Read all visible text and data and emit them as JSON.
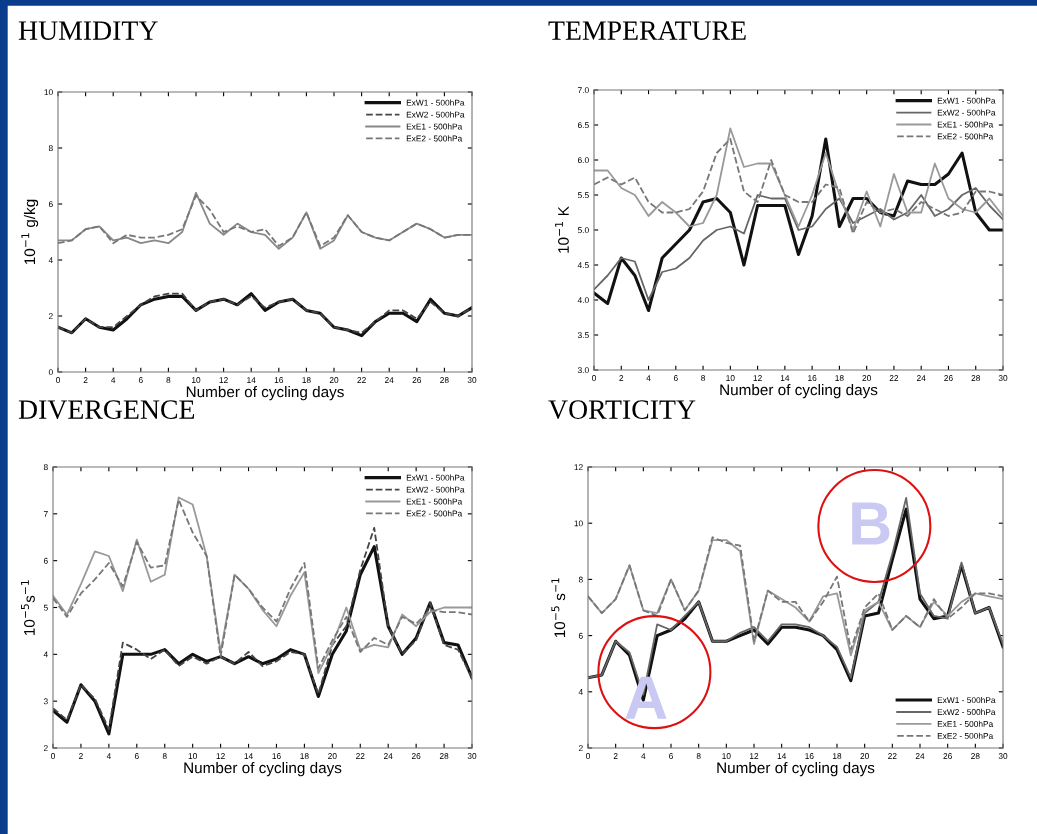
{
  "chart_data": [
    {
      "type": "line",
      "title": "HUMIDITY",
      "xlabel": "Number of cycling days",
      "ylabel": "10$^{−1}$ g/kg",
      "x": [
        0,
        1,
        2,
        3,
        4,
        5,
        6,
        7,
        8,
        9,
        10,
        11,
        12,
        13,
        14,
        15,
        16,
        17,
        18,
        19,
        20,
        21,
        22,
        23,
        24,
        25,
        26,
        27,
        28,
        29,
        30
      ],
      "xlim": [
        0,
        30
      ],
      "xticks": [
        0,
        2,
        4,
        6,
        8,
        10,
        12,
        14,
        16,
        18,
        20,
        22,
        24,
        26,
        28,
        30
      ],
      "ylim": [
        0,
        10
      ],
      "yticks": [
        0,
        2,
        4,
        6,
        8,
        10
      ],
      "grid": false,
      "legend": "top right",
      "marker": "none",
      "series": [
        {
          "name": "ExW1 - 500hPa",
          "color": "#111111",
          "line_style": "solid",
          "values": [
            1.6,
            1.4,
            1.9,
            1.6,
            1.5,
            1.9,
            2.4,
            2.6,
            2.7,
            2.7,
            2.2,
            2.5,
            2.6,
            2.4,
            2.8,
            2.2,
            2.5,
            2.6,
            2.2,
            2.1,
            1.6,
            1.5,
            1.3,
            1.8,
            2.1,
            2.1,
            1.8,
            2.6,
            2.1,
            2.0,
            2.3
          ]
        },
        {
          "name": "ExW2 - 500hPa",
          "color": "#444444",
          "line_style": "dashed",
          "values": [
            1.6,
            1.4,
            1.9,
            1.6,
            1.6,
            2.0,
            2.4,
            2.7,
            2.8,
            2.8,
            2.2,
            2.5,
            2.6,
            2.4,
            2.7,
            2.3,
            2.5,
            2.6,
            2.2,
            2.1,
            1.6,
            1.5,
            1.4,
            1.8,
            2.2,
            2.2,
            1.9,
            2.5,
            2.1,
            2.0,
            2.3
          ]
        },
        {
          "name": "ExE1 - 500hPa",
          "color": "#888888",
          "line_style": "solid",
          "values": [
            4.7,
            4.7,
            5.1,
            5.2,
            4.7,
            4.8,
            4.6,
            4.7,
            4.6,
            5.0,
            6.4,
            5.3,
            4.9,
            5.3,
            5.0,
            4.9,
            4.4,
            4.8,
            5.7,
            4.4,
            4.7,
            5.6,
            5.0,
            4.8,
            4.7,
            5.0,
            5.3,
            5.1,
            4.8,
            4.9,
            4.9
          ]
        },
        {
          "name": "ExE2 - 500hPa",
          "color": "#777777",
          "line_style": "dashed",
          "values": [
            4.6,
            4.7,
            5.1,
            5.2,
            4.6,
            4.9,
            4.8,
            4.8,
            4.9,
            5.1,
            6.3,
            5.8,
            5.0,
            5.2,
            5.0,
            5.1,
            4.5,
            4.8,
            5.7,
            4.5,
            4.8,
            5.6,
            5.0,
            4.8,
            4.7,
            5.0,
            5.3,
            5.1,
            4.8,
            4.9,
            4.9
          ]
        }
      ]
    },
    {
      "type": "line",
      "title": "TEMPERATURE",
      "xlabel": "Number of cycling days",
      "ylabel": "10$^{−1}$ K",
      "x": [
        0,
        1,
        2,
        3,
        4,
        5,
        6,
        7,
        8,
        9,
        10,
        11,
        12,
        13,
        14,
        15,
        16,
        17,
        18,
        19,
        20,
        21,
        22,
        23,
        24,
        25,
        26,
        27,
        28,
        29,
        30
      ],
      "xlim": [
        0,
        30
      ],
      "xticks": [
        0,
        2,
        4,
        6,
        8,
        10,
        12,
        14,
        16,
        18,
        20,
        22,
        24,
        26,
        28,
        30
      ],
      "ylim": [
        3.0,
        7.0
      ],
      "yticks": [
        {
          "value": 3.0,
          "label": "3.0"
        },
        {
          "value": 3.5,
          "label": "3.5"
        },
        {
          "value": 4.0,
          "label": "4.0"
        },
        {
          "value": 4.5,
          "label": "4.5"
        },
        {
          "value": 5.0,
          "label": "5.0"
        },
        {
          "value": 5.5,
          "label": "5.5"
        },
        {
          "value": 6.0,
          "label": "6.0"
        },
        {
          "value": 6.5,
          "label": "6.5"
        },
        {
          "value": 7.0,
          "label": "7.0"
        }
      ],
      "grid": false,
      "legend": "top right",
      "marker": "none",
      "series": [
        {
          "name": "ExW1 - 500hPa",
          "color": "#111111",
          "line_style": "solid",
          "values": [
            4.1,
            3.95,
            4.6,
            4.35,
            3.85,
            4.6,
            4.8,
            5.0,
            5.4,
            5.45,
            5.25,
            4.5,
            5.35,
            5.35,
            5.35,
            4.65,
            5.2,
            6.3,
            5.05,
            5.45,
            5.45,
            5.25,
            5.2,
            5.7,
            5.65,
            5.65,
            5.8,
            6.1,
            5.25,
            5.0,
            5.0
          ]
        },
        {
          "name": "ExW2 - 500hPa",
          "color": "#666666",
          "line_style": "solid",
          "values": [
            4.15,
            4.35,
            4.6,
            4.55,
            4.0,
            4.4,
            4.45,
            4.6,
            4.85,
            5.0,
            5.05,
            4.95,
            5.5,
            5.45,
            5.45,
            5.0,
            5.05,
            5.3,
            5.45,
            5.1,
            5.2,
            5.3,
            5.15,
            5.25,
            5.5,
            5.2,
            5.3,
            5.5,
            5.6,
            5.35,
            5.15
          ]
        },
        {
          "name": "ExE1 - 500hPa",
          "color": "#999999",
          "line_style": "solid",
          "values": [
            5.85,
            5.85,
            5.6,
            5.5,
            5.2,
            5.4,
            5.25,
            5.05,
            5.1,
            5.5,
            6.45,
            5.9,
            5.95,
            5.95,
            5.5,
            5.05,
            5.5,
            6.1,
            5.5,
            5.0,
            5.55,
            5.05,
            5.8,
            5.25,
            5.25,
            5.95,
            5.45,
            5.3,
            5.25,
            5.45,
            5.2
          ]
        },
        {
          "name": "ExE2 - 500hPa",
          "color": "#777777",
          "line_style": "dashed",
          "values": [
            5.65,
            5.75,
            5.65,
            5.75,
            5.4,
            5.25,
            5.25,
            5.3,
            5.55,
            6.1,
            6.3,
            5.55,
            5.4,
            6.0,
            5.5,
            5.4,
            5.4,
            5.65,
            5.6,
            4.95,
            5.4,
            5.25,
            5.3,
            5.2,
            5.4,
            5.3,
            5.2,
            5.25,
            5.55,
            5.55,
            5.5
          ]
        }
      ]
    },
    {
      "type": "line",
      "title": "DIVERGENCE",
      "xlabel": "Number of cycling days",
      "ylabel": "10$^{−5}$s$^{−1}$",
      "x": [
        0,
        1,
        2,
        3,
        4,
        5,
        6,
        7,
        8,
        9,
        10,
        11,
        12,
        13,
        14,
        15,
        16,
        17,
        18,
        19,
        20,
        21,
        22,
        23,
        24,
        25,
        26,
        27,
        28,
        29,
        30
      ],
      "xlim": [
        0,
        30
      ],
      "xticks": [
        0,
        2,
        4,
        6,
        8,
        10,
        12,
        14,
        16,
        18,
        20,
        22,
        24,
        26,
        28,
        30
      ],
      "ylim": [
        2,
        8
      ],
      "yticks": [
        2,
        3,
        4,
        5,
        6,
        7,
        8
      ],
      "grid": false,
      "legend": "top right",
      "marker": "none",
      "series": [
        {
          "name": "ExW1 - 500hPa",
          "color": "#111111",
          "line_style": "solid",
          "values": [
            2.8,
            2.55,
            3.35,
            3.0,
            2.3,
            4.0,
            4.0,
            4.0,
            4.1,
            3.8,
            4.0,
            3.85,
            3.95,
            3.8,
            3.95,
            3.8,
            3.9,
            4.1,
            4.0,
            3.1,
            4.0,
            4.5,
            5.7,
            6.3,
            4.6,
            4.0,
            4.35,
            5.1,
            4.25,
            4.2,
            3.5
          ]
        },
        {
          "name": "ExW2 - 500hPa",
          "color": "#444444",
          "line_style": "dashed",
          "values": [
            2.85,
            2.6,
            3.35,
            3.05,
            2.4,
            4.25,
            4.1,
            3.9,
            4.1,
            3.75,
            3.95,
            3.8,
            3.95,
            3.8,
            4.05,
            3.75,
            3.85,
            4.05,
            4.0,
            3.15,
            4.2,
            4.6,
            5.8,
            6.7,
            4.6,
            4.0,
            4.3,
            5.1,
            4.2,
            4.1,
            3.5
          ]
        },
        {
          "name": "ExE1 - 500hPa",
          "color": "#999999",
          "line_style": "solid",
          "values": [
            5.25,
            4.85,
            5.5,
            6.2,
            6.1,
            5.35,
            6.45,
            5.55,
            5.7,
            7.35,
            7.2,
            6.1,
            4.05,
            5.7,
            5.4,
            4.95,
            4.6,
            5.25,
            5.75,
            3.6,
            4.2,
            5.0,
            4.1,
            4.2,
            4.15,
            4.85,
            4.6,
            4.9,
            5.0,
            5.0,
            5.0
          ]
        },
        {
          "name": "ExE2 - 500hPa",
          "color": "#777777",
          "line_style": "dashed",
          "values": [
            5.2,
            4.8,
            5.3,
            5.6,
            5.95,
            5.45,
            6.4,
            5.85,
            5.9,
            7.3,
            6.6,
            6.1,
            3.95,
            5.7,
            5.4,
            5.0,
            4.7,
            5.4,
            5.95,
            3.7,
            4.3,
            4.8,
            4.05,
            4.35,
            4.2,
            4.8,
            4.65,
            4.95,
            4.9,
            4.9,
            4.85
          ]
        }
      ]
    },
    {
      "type": "line",
      "title": "VORTICITY",
      "xlabel": "Number of cycling days",
      "ylabel": "10$^{−5}$ s$^{−1}$",
      "x": [
        0,
        1,
        2,
        3,
        4,
        5,
        6,
        7,
        8,
        9,
        10,
        11,
        12,
        13,
        14,
        15,
        16,
        17,
        18,
        19,
        20,
        21,
        22,
        23,
        24,
        25,
        26,
        27,
        28,
        29,
        30
      ],
      "xlim": [
        0,
        30
      ],
      "xticks": [
        0,
        2,
        4,
        6,
        8,
        10,
        12,
        14,
        16,
        18,
        20,
        22,
        24,
        26,
        28,
        30
      ],
      "ylim": [
        2,
        12
      ],
      "yticks": [
        2,
        4,
        6,
        8,
        10,
        12
      ],
      "grid": false,
      "legend": "bottom right",
      "marker": "none",
      "annotations": [
        "A",
        "B"
      ],
      "series": [
        {
          "name": "ExW1 - 500hPa",
          "color": "#111111",
          "line_style": "solid",
          "values": [
            4.5,
            4.6,
            5.8,
            5.3,
            3.7,
            6.0,
            6.2,
            6.6,
            7.2,
            5.8,
            5.8,
            6.0,
            6.2,
            5.7,
            6.3,
            6.3,
            6.2,
            6.0,
            5.5,
            4.4,
            6.7,
            6.8,
            8.7,
            10.5,
            7.3,
            6.6,
            6.7,
            8.5,
            6.8,
            7.0,
            5.6
          ]
        },
        {
          "name": "ExW2 - 500hPa",
          "color": "#666666",
          "line_style": "solid",
          "values": [
            4.5,
            4.6,
            5.8,
            5.4,
            3.9,
            6.4,
            6.2,
            6.7,
            7.2,
            5.8,
            5.8,
            6.1,
            6.3,
            5.8,
            6.4,
            6.4,
            6.3,
            6.0,
            5.6,
            4.5,
            6.8,
            7.2,
            8.9,
            10.9,
            7.5,
            6.7,
            6.6,
            8.6,
            6.8,
            7.0,
            5.7
          ]
        },
        {
          "name": "ExE1 - 500hPa",
          "color": "#999999",
          "line_style": "solid",
          "values": [
            7.4,
            6.8,
            7.3,
            8.5,
            6.9,
            6.8,
            8.0,
            6.9,
            7.6,
            9.4,
            9.4,
            9.0,
            5.7,
            7.6,
            7.3,
            7.0,
            6.5,
            7.4,
            7.5,
            5.3,
            6.9,
            7.2,
            6.2,
            6.7,
            6.3,
            7.2,
            6.7,
            7.2,
            7.5,
            7.4,
            7.3
          ]
        },
        {
          "name": "ExE2 - 500hPa",
          "color": "#777777",
          "line_style": "dashed",
          "values": [
            7.4,
            6.8,
            7.3,
            8.5,
            6.9,
            6.7,
            8.0,
            6.9,
            7.6,
            9.5,
            9.3,
            9.2,
            5.8,
            7.6,
            7.2,
            7.2,
            6.5,
            7.2,
            8.1,
            5.5,
            7.0,
            7.5,
            6.2,
            6.7,
            6.3,
            7.3,
            6.6,
            7.0,
            7.5,
            7.5,
            7.4
          ]
        }
      ]
    }
  ]
}
